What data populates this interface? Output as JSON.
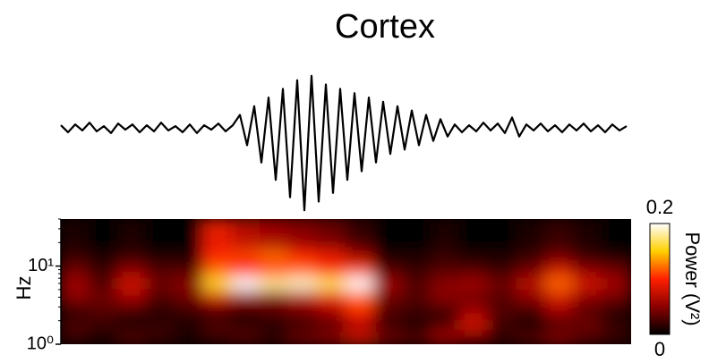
{
  "chart_data": [
    {
      "type": "line",
      "title": "Cortex",
      "color": "#000000",
      "ylim": [
        -100,
        65
      ],
      "values": [
        3,
        -5,
        4,
        -3,
        6,
        -4,
        2,
        -6,
        5,
        -2,
        4,
        -5,
        3,
        -4,
        6,
        -3,
        2,
        -5,
        4,
        -6,
        3,
        -2,
        5,
        -4,
        3,
        15,
        -20,
        25,
        -40,
        35,
        -60,
        45,
        -80,
        55,
        -95,
        60,
        -85,
        50,
        -75,
        45,
        -60,
        40,
        -50,
        35,
        -40,
        30,
        -30,
        25,
        -25,
        20,
        -20,
        15,
        -15,
        10,
        -10,
        4,
        -5,
        3,
        -4,
        6,
        -3,
        5,
        -6,
        12,
        -10,
        4,
        -3,
        5,
        -4,
        3,
        -5,
        4,
        -3,
        5,
        -4,
        3,
        -5,
        4,
        -3,
        2
      ]
    },
    {
      "type": "heatmap",
      "ylabel": "Hz",
      "log_y": true,
      "ylim": [
        1,
        40
      ],
      "yticks": [
        {
          "value": 1,
          "label": "10⁰"
        },
        {
          "value": 10,
          "label": "10¹"
        }
      ],
      "minor_yticks": [
        2,
        3,
        4,
        5,
        6,
        7,
        8,
        9,
        20,
        30,
        40
      ],
      "y_bins": [
        1,
        1.5,
        2.2,
        3.3,
        5,
        7.5,
        11,
        17,
        40
      ],
      "colormap": [
        "#000000",
        "#8b0000",
        "#ff2000",
        "#ffd000",
        "#ffffff"
      ],
      "clim": [
        0,
        0.2
      ],
      "cticks": [
        0,
        0.2
      ],
      "colorbar_label": "Power (V²)",
      "values": [
        [
          0.02,
          0.01,
          0.03,
          0.02,
          0.01,
          0.02,
          0.03,
          0.02,
          0.04,
          0.05,
          0.08,
          0.04,
          0.03,
          0.06,
          0.04,
          0.02,
          0.03,
          0.05,
          0.03,
          0.02
        ],
        [
          0.03,
          0.02,
          0.01,
          0.02,
          0.01,
          0.03,
          0.02,
          0.01,
          0.02,
          0.03,
          0.06,
          0.02,
          0.01,
          0.03,
          0.08,
          0.02,
          0.01,
          0.02,
          0.04,
          0.02
        ],
        [
          0.01,
          0.03,
          0.02,
          0.01,
          0.02,
          0.02,
          0.01,
          0.03,
          0.04,
          0.06,
          0.1,
          0.03,
          0.02,
          0.02,
          0.06,
          0.03,
          0.02,
          0.06,
          0.03,
          0.01
        ],
        [
          0.05,
          0.04,
          0.06,
          0.03,
          0.04,
          0.08,
          0.06,
          0.05,
          0.07,
          0.09,
          0.12,
          0.04,
          0.03,
          0.05,
          0.04,
          0.03,
          0.05,
          0.08,
          0.05,
          0.04
        ],
        [
          0.06,
          0.03,
          0.08,
          0.04,
          0.05,
          0.16,
          0.2,
          0.18,
          0.19,
          0.17,
          0.2,
          0.06,
          0.03,
          0.05,
          0.06,
          0.04,
          0.07,
          0.12,
          0.08,
          0.06
        ],
        [
          0.04,
          0.02,
          0.05,
          0.03,
          0.03,
          0.12,
          0.1,
          0.11,
          0.12,
          0.1,
          0.11,
          0.03,
          0.02,
          0.03,
          0.03,
          0.02,
          0.04,
          0.08,
          0.05,
          0.04
        ],
        [
          0.02,
          0.01,
          0.02,
          0.01,
          0.01,
          0.1,
          0.11,
          0.12,
          0.1,
          0.09,
          0.06,
          0.01,
          0.01,
          0.02,
          0.01,
          0.01,
          0.02,
          0.04,
          0.02,
          0.01
        ],
        [
          0.01,
          0,
          0.01,
          0,
          0,
          0.09,
          0.07,
          0.06,
          0.05,
          0.04,
          0.02,
          0,
          0,
          0.01,
          0,
          0,
          0.01,
          0.02,
          0.01,
          0
        ]
      ]
    }
  ]
}
